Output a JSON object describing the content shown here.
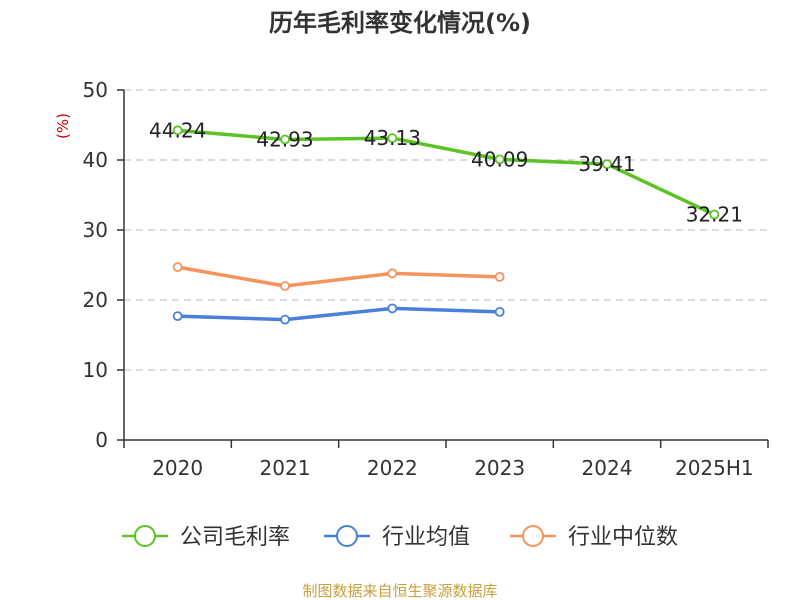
{
  "title": "历年毛利率变化情况(%)",
  "source": "制图数据来自恒生聚源数据库",
  "colors": {
    "company": "#5cc324",
    "industry_avg": "#4a7fdc",
    "industry_median": "#f7925a",
    "grid": "#c8c8c8",
    "axis": "#333333",
    "ylabel": "#cc0000",
    "source": "#c8a040"
  },
  "chart_data": {
    "type": "line",
    "title": "历年毛利率变化情况(%)",
    "ylabel": "(%)",
    "xlabel": "",
    "categories": [
      "2020",
      "2021",
      "2022",
      "2023",
      "2024",
      "2025H1"
    ],
    "ylim": [
      0,
      50
    ],
    "yticks": [
      0,
      10,
      20,
      30,
      40,
      50
    ],
    "grid": true,
    "legend_position": "bottom",
    "series": [
      {
        "name": "公司毛利率",
        "values": [
          44.24,
          42.93,
          43.13,
          40.09,
          39.41,
          32.21
        ],
        "labels": [
          "44.24",
          "42.93",
          "43.13",
          "40.09",
          "39.41",
          "32.21"
        ],
        "color": "#5cc324"
      },
      {
        "name": "行业均值",
        "values": [
          17.7,
          17.2,
          18.8,
          18.3,
          null,
          null
        ],
        "color": "#4a7fdc"
      },
      {
        "name": "行业中位数",
        "values": [
          24.7,
          22.0,
          23.8,
          23.3,
          null,
          null
        ],
        "color": "#f7925a"
      }
    ]
  }
}
